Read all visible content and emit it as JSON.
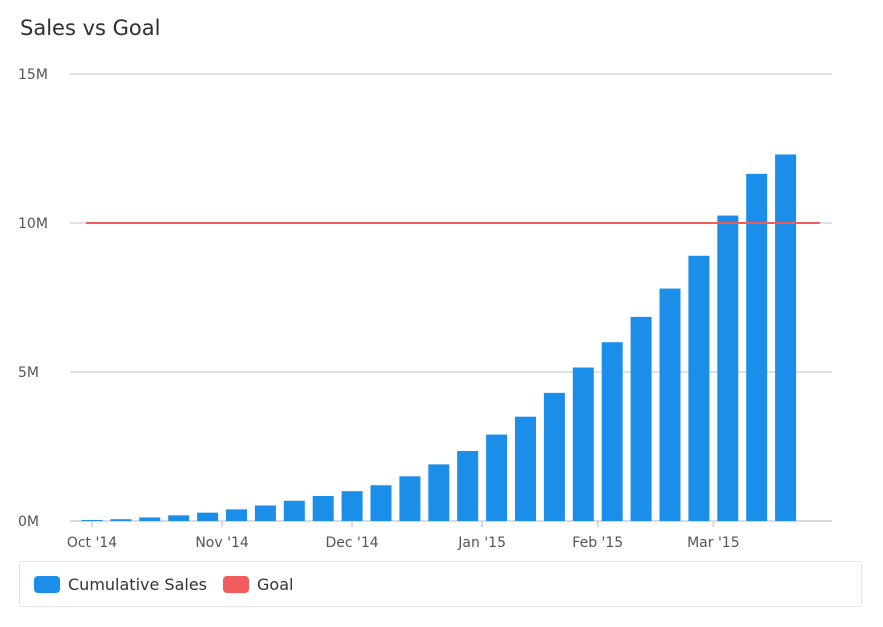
{
  "chart_data": {
    "type": "bar",
    "title": "Sales vs Goal",
    "xlabel": "",
    "ylabel": "",
    "ylim": [
      0,
      15000000
    ],
    "y_ticks": [
      {
        "value": 0,
        "label": "0M"
      },
      {
        "value": 5000000,
        "label": "5M"
      },
      {
        "value": 10000000,
        "label": "10M"
      },
      {
        "value": 15000000,
        "label": "15M"
      }
    ],
    "x_ticks": [
      {
        "index": 0,
        "label": "Oct '14"
      },
      {
        "index": 4.5,
        "label": "Nov '14"
      },
      {
        "index": 9,
        "label": "Dec '14"
      },
      {
        "index": 13.5,
        "label": "Jan '15"
      },
      {
        "index": 17.5,
        "label": "Feb '15"
      },
      {
        "index": 21.5,
        "label": "Mar '15"
      }
    ],
    "grid": true,
    "legend_position": "bottom",
    "series": [
      {
        "name": "Cumulative Sales",
        "type": "bar",
        "color": "#1a8ee8",
        "values": [
          20000,
          60000,
          120000,
          190000,
          280000,
          390000,
          520000,
          680000,
          840000,
          1000000,
          1200000,
          1500000,
          1900000,
          2350000,
          2900000,
          3500000,
          4300000,
          5150000,
          6000000,
          6850000,
          7800000,
          8900000,
          10250000,
          11650000,
          12300000
        ]
      },
      {
        "name": "Goal",
        "type": "line",
        "color": "#f25b5b",
        "value": 10000000
      }
    ]
  }
}
